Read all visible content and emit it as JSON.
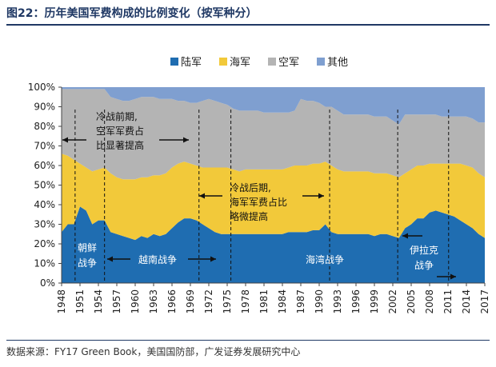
{
  "title": "图22：历年美国军费构成的比例变化（按军种分）",
  "source": "数据来源：FY17 Green Book，美国国防部，广发证券发展研究中心",
  "chart_data": {
    "type": "area",
    "stacked": true,
    "x_tick_labels": [
      "1948",
      "1951",
      "1954",
      "1957",
      "1960",
      "1963",
      "1966",
      "1969",
      "1972",
      "1975",
      "1978",
      "1981",
      "1984",
      "1987",
      "1990",
      "1993",
      "1996",
      "1999",
      "2002",
      "2005",
      "2008",
      "2011",
      "2014",
      "2017"
    ],
    "y_tick_labels": [
      "0%",
      "10%",
      "20%",
      "30%",
      "40%",
      "50%",
      "60%",
      "70%",
      "80%",
      "90%",
      "100%"
    ],
    "ylim": [
      0,
      100
    ],
    "xlim": [
      1948,
      2017
    ],
    "legend_position": "top",
    "years": [
      1948,
      1949,
      1950,
      1951,
      1952,
      1953,
      1954,
      1955,
      1956,
      1957,
      1958,
      1959,
      1960,
      1961,
      1962,
      1963,
      1964,
      1965,
      1966,
      1967,
      1968,
      1969,
      1970,
      1971,
      1972,
      1973,
      1974,
      1975,
      1976,
      1977,
      1978,
      1979,
      1980,
      1981,
      1982,
      1983,
      1984,
      1985,
      1986,
      1987,
      1988,
      1989,
      1990,
      1991,
      1992,
      1993,
      1994,
      1995,
      1996,
      1997,
      1998,
      1999,
      2000,
      2001,
      2002,
      2003,
      2004,
      2005,
      2006,
      2007,
      2008,
      2009,
      2010,
      2011,
      2012,
      2013,
      2014,
      2015,
      2016,
      2017
    ],
    "series": [
      {
        "name": "陆军",
        "color": "#1f6db1",
        "values": [
          26,
          30,
          30,
          39,
          37,
          30,
          32,
          32,
          26,
          25,
          24,
          23,
          22,
          24,
          23,
          25,
          24,
          25,
          28,
          31,
          33,
          33,
          32,
          30,
          28,
          26,
          25,
          25,
          25,
          25,
          25,
          25,
          25,
          25,
          25,
          25,
          25,
          26,
          26,
          26,
          26,
          27,
          27,
          30,
          26,
          25,
          25,
          25,
          25,
          25,
          25,
          24,
          25,
          25,
          24,
          23,
          28,
          30,
          33,
          33,
          36,
          37,
          36,
          35,
          34,
          32,
          30,
          28,
          25,
          23
        ]
      },
      {
        "name": "海军",
        "color": "#f2c93a",
        "values": [
          40,
          35,
          33,
          22,
          22,
          27,
          26,
          27,
          30,
          29,
          29,
          30,
          31,
          30,
          31,
          30,
          31,
          31,
          31,
          30,
          29,
          28,
          28,
          29,
          31,
          33,
          34,
          34,
          33,
          32,
          33,
          33,
          33,
          33,
          33,
          33,
          33,
          33,
          34,
          34,
          34,
          34,
          34,
          32,
          34,
          33,
          32,
          32,
          32,
          32,
          32,
          32,
          31,
          31,
          31,
          31,
          28,
          28,
          27,
          27,
          25,
          24,
          25,
          26,
          27,
          29,
          30,
          31,
          31,
          31
        ]
      },
      {
        "name": "空军",
        "color": "#b4b4b4",
        "values": [
          33,
          34,
          36,
          38,
          40,
          42,
          41,
          40,
          39,
          40,
          40,
          40,
          41,
          41,
          41,
          40,
          39,
          38,
          35,
          32,
          31,
          31,
          32,
          34,
          35,
          34,
          33,
          32,
          31,
          31,
          30,
          30,
          30,
          29,
          29,
          29,
          29,
          28,
          28,
          34,
          33,
          32,
          31,
          28,
          30,
          30,
          29,
          29,
          29,
          29,
          29,
          29,
          29,
          29,
          28,
          27,
          30,
          28,
          26,
          26,
          25,
          25,
          24,
          24,
          24,
          24,
          25,
          25,
          26,
          28
        ]
      },
      {
        "name": "其他",
        "color": "#7f9fd0",
        "values": [
          1,
          1,
          1,
          1,
          1,
          1,
          1,
          1,
          5,
          6,
          7,
          7,
          6,
          5,
          5,
          5,
          6,
          6,
          6,
          7,
          7,
          8,
          8,
          7,
          6,
          7,
          8,
          9,
          11,
          12,
          12,
          12,
          12,
          13,
          13,
          13,
          13,
          13,
          12,
          6,
          7,
          7,
          8,
          10,
          10,
          12,
          14,
          14,
          14,
          14,
          14,
          15,
          15,
          15,
          17,
          19,
          14,
          14,
          14,
          14,
          14,
          14,
          15,
          15,
          15,
          15,
          15,
          16,
          18,
          18
        ]
      }
    ],
    "annotations": [
      {
        "id": "cold-war-early",
        "text": [
          "冷战前期,",
          "空军军费占",
          "比显著提高"
        ]
      },
      {
        "id": "cold-war-late",
        "text": [
          "冷战后期,",
          "海军军费占比",
          "略微提高"
        ]
      },
      {
        "id": "korean-war",
        "text": [
          "朝鲜",
          "战争"
        ]
      },
      {
        "id": "vietnam-war",
        "text": [
          "越南战争"
        ]
      },
      {
        "id": "gulf-war",
        "text": [
          "海湾战争"
        ]
      },
      {
        "id": "iraq-war",
        "text": [
          "伊拉克",
          "战争"
        ]
      }
    ]
  }
}
